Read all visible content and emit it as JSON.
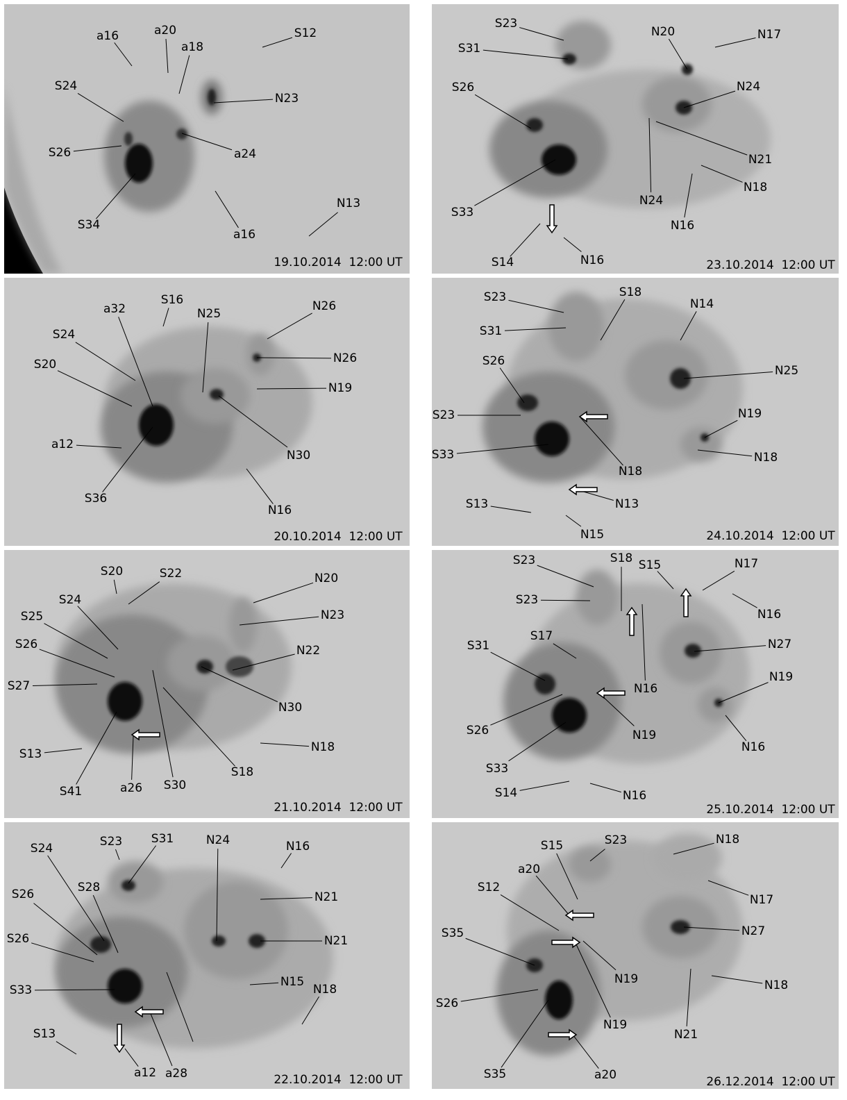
{
  "panels": [
    {
      "date": "19.10.2014  12:00 UT",
      "labels": [
        "a16",
        "a20",
        "a18",
        "S12",
        "S24",
        "N23",
        "S26",
        "a24",
        "S34",
        "a16",
        "N13"
      ]
    },
    {
      "date": "23.10.2014  12:00 UT",
      "labels": [
        "S23",
        "S31",
        "N20",
        "N17",
        "S26",
        "N24",
        "N21",
        "N18",
        "S33",
        "N24",
        "N16",
        "S14",
        "N16"
      ]
    },
    {
      "date": "20.10.2014  12:00 UT",
      "labels": [
        "S16",
        "a32",
        "N25",
        "N26",
        "S24",
        "N26",
        "S20",
        "N19",
        "a12",
        "N30",
        "S36",
        "N16"
      ]
    },
    {
      "date": "24.10.2014  12:00 UT",
      "labels": [
        "S23",
        "S18",
        "N14",
        "S31",
        "S26",
        "N25",
        "S23",
        "N19",
        "S33",
        "N18",
        "N18",
        "N13",
        "S13",
        "N15"
      ]
    },
    {
      "date": "21.10.2014  12:00 UT",
      "labels": [
        "S20",
        "S22",
        "N20",
        "S24",
        "N23",
        "S25",
        "S26",
        "N22",
        "S27",
        "N30",
        "S13",
        "N18",
        "S41",
        "a26",
        "S30",
        "S18"
      ]
    },
    {
      "date": "25.10.2014  12:00 UT",
      "labels": [
        "S23",
        "S18",
        "S15",
        "N17",
        "S23",
        "N16",
        "S17",
        "N27",
        "S31",
        "N19",
        "N16",
        "S26",
        "N19",
        "N16",
        "S33",
        "S14",
        "N16"
      ]
    },
    {
      "date": "22.10.2014  12:00 UT",
      "labels": [
        "S23",
        "S31",
        "N24",
        "N16",
        "S24",
        "S28",
        "S26",
        "N21",
        "S26",
        "N21",
        "N15",
        "S33",
        "N18",
        "S13",
        "a12",
        "a28"
      ]
    },
    {
      "date": "26.12.2014  12:00 UT",
      "labels": [
        "S15",
        "S23",
        "N18",
        "a20",
        "S12",
        "N17",
        "S35",
        "N27",
        "N19",
        "N18",
        "S26",
        "N19",
        "N21",
        "a20",
        "S35"
      ]
    }
  ]
}
